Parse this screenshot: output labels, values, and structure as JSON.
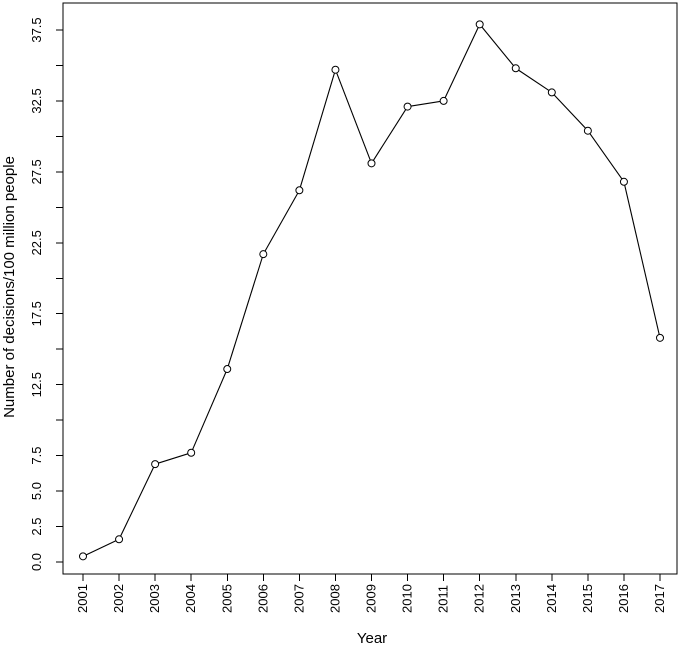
{
  "chart_data": {
    "type": "line",
    "title": "",
    "xlabel": "Year",
    "ylabel": "Number of decisions/100 million people",
    "categories": [
      "2001",
      "2002",
      "2003",
      "2004",
      "2005",
      "2006",
      "2007",
      "2008",
      "2009",
      "2010",
      "2011",
      "2012",
      "2013",
      "2014",
      "2015",
      "2016",
      "2017"
    ],
    "y_ticks": [
      "0.0",
      "2.5",
      "5.0",
      "7.5",
      "12.5",
      "17.5",
      "22.5",
      "27.5",
      "32.5",
      "37.5"
    ],
    "ylim": [
      -0.5,
      38.5
    ],
    "grid": false,
    "marker": "open-circle",
    "series": [
      {
        "values": [
          0.4,
          1.6,
          6.9,
          7.7,
          13.6,
          21.7,
          26.2,
          34.7,
          28.1,
          32.1,
          32.5,
          37.9,
          34.8,
          33.1,
          30.4,
          26.8,
          15.8
        ]
      }
    ]
  }
}
